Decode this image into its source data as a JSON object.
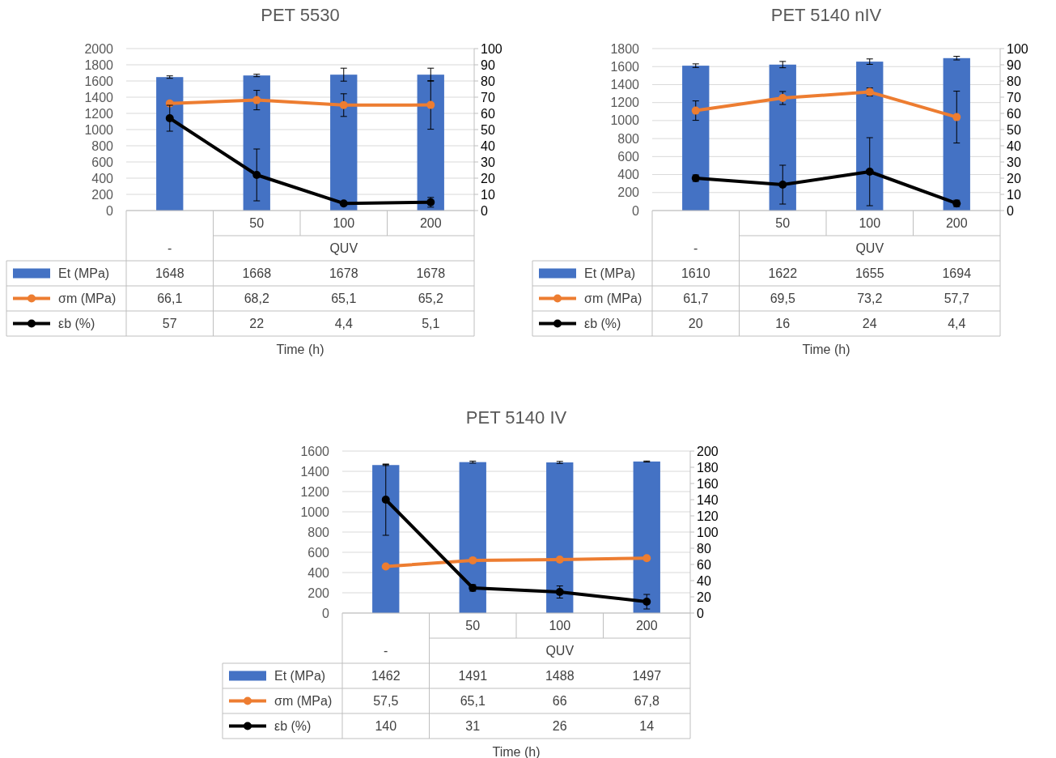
{
  "chart_data": [
    {
      "type": "bar",
      "title": "PET 5530",
      "xlabel": "Time (h)",
      "categories": [
        "-",
        "50",
        "100",
        "200"
      ],
      "annotations": [
        "QUV"
      ],
      "ylim": [
        0,
        2000
      ],
      "yticks": [
        0,
        200,
        400,
        600,
        800,
        1000,
        1200,
        1400,
        1600,
        1800,
        2000
      ],
      "y2lim": [
        0,
        100
      ],
      "y2ticks": [
        0,
        10,
        20,
        30,
        40,
        50,
        60,
        70,
        80,
        90,
        100
      ],
      "grid": "y",
      "legend": "bottom",
      "marker": "circle",
      "line_style": "solid",
      "series": [
        {
          "name": "Et (MPa)",
          "color": "#4472c4",
          "values": [
            1648,
            1668,
            1678,
            1678
          ],
          "errors": [
            15,
            15,
            80,
            80
          ],
          "value_labels": [
            "1648",
            "1668",
            "1678",
            "1678"
          ]
        },
        {
          "name": "σm (MPa)",
          "type": "line",
          "axis": "y2",
          "color": "#ed7d31",
          "values": [
            66.1,
            68.2,
            65.1,
            65.2
          ],
          "errors": [
            null,
            6,
            7,
            15
          ],
          "value_labels": [
            "66,1",
            "68,2",
            "65,1",
            "65,2"
          ]
        },
        {
          "name": "εb (%)",
          "type": "line",
          "axis": "y2",
          "color": "#000000",
          "values": [
            57,
            22,
            4.4,
            5.1
          ],
          "errors": [
            8,
            16,
            null,
            3
          ],
          "value_labels": [
            "57",
            "22",
            "4,4",
            "5,1"
          ]
        }
      ]
    },
    {
      "type": "bar",
      "title": "PET 5140 nIV",
      "xlabel": "Time (h)",
      "categories": [
        "-",
        "50",
        "100",
        "200"
      ],
      "annotations": [
        "QUV"
      ],
      "ylim": [
        0,
        1800
      ],
      "yticks": [
        0,
        200,
        400,
        600,
        800,
        1000,
        1200,
        1400,
        1600,
        1800
      ],
      "y2lim": [
        0,
        100
      ],
      "y2ticks": [
        0,
        10,
        20,
        30,
        40,
        50,
        60,
        70,
        80,
        90,
        100
      ],
      "grid": "y",
      "legend": "bottom",
      "marker": "circle",
      "line_style": "solid",
      "series": [
        {
          "name": "Et (MPa)",
          "color": "#4472c4",
          "values": [
            1610,
            1622,
            1655,
            1694
          ],
          "errors": [
            20,
            35,
            30,
            20
          ],
          "value_labels": [
            "1610",
            "1622",
            "1655",
            "1694"
          ]
        },
        {
          "name": "σm (MPa)",
          "type": "line",
          "axis": "y2",
          "color": "#ed7d31",
          "values": [
            61.7,
            69.5,
            73.2,
            57.7
          ],
          "errors": [
            6,
            4,
            2.5,
            16
          ],
          "value_labels": [
            "61,7",
            "69,5",
            "73,2",
            "57,7"
          ]
        },
        {
          "name": "εb (%)",
          "type": "line",
          "axis": "y2",
          "color": "#000000",
          "values": [
            20,
            16,
            24,
            4.4
          ],
          "errors": [
            2,
            12,
            21,
            2
          ],
          "value_labels": [
            "20",
            "16",
            "24",
            "4,4"
          ]
        }
      ]
    },
    {
      "type": "bar",
      "title": "PET 5140 IV",
      "xlabel": "Time (h)",
      "categories": [
        "-",
        "50",
        "100",
        "200"
      ],
      "annotations": [
        "QUV"
      ],
      "ylim": [
        0,
        1600
      ],
      "yticks": [
        0,
        200,
        400,
        600,
        800,
        1000,
        1200,
        1400,
        1600
      ],
      "y2lim": [
        0,
        200
      ],
      "y2ticks": [
        0,
        20,
        40,
        60,
        80,
        100,
        120,
        140,
        160,
        180,
        200
      ],
      "grid": "y",
      "legend": "bottom",
      "marker": "circle",
      "line_style": "solid",
      "series": [
        {
          "name": "Et (MPa)",
          "color": "#4472c4",
          "values": [
            1462,
            1491,
            1488,
            1497
          ],
          "errors": [
            5,
            10,
            10,
            5
          ],
          "value_labels": [
            "1462",
            "1491",
            "1488",
            "1497"
          ]
        },
        {
          "name": "σm (MPa)",
          "type": "line",
          "axis": "y2",
          "color": "#ed7d31",
          "values": [
            57.5,
            65.1,
            66,
            67.8
          ],
          "value_labels": [
            "57,5",
            "65,1",
            "66",
            "67,8"
          ]
        },
        {
          "name": "εb (%)",
          "type": "line",
          "axis": "y2",
          "color": "#000000",
          "values": [
            140,
            31,
            26,
            14
          ],
          "errors": [
            44,
            4,
            7.5,
            9
          ],
          "value_labels": [
            "140",
            "31",
            "26",
            "14"
          ]
        }
      ]
    }
  ]
}
